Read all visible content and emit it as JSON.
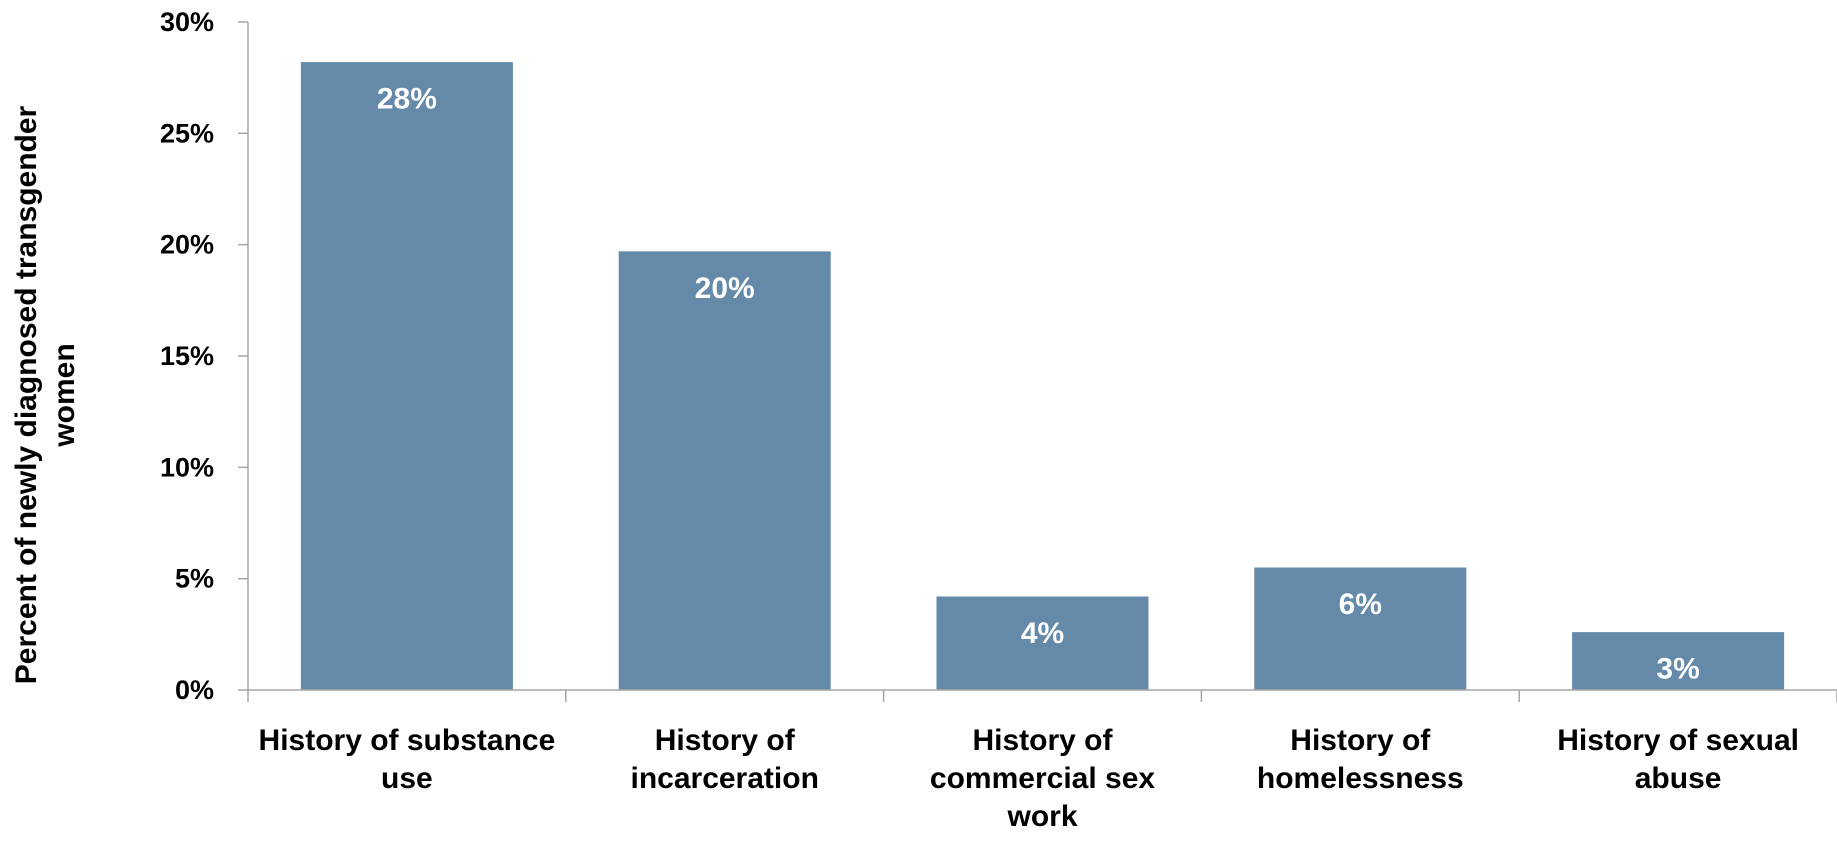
{
  "chart_data": {
    "type": "bar",
    "categories": [
      [
        "History of substance",
        "use"
      ],
      [
        "History of",
        "incarceration"
      ],
      [
        "History of",
        "commercial sex",
        "work"
      ],
      [
        "History of",
        "homelessness"
      ],
      [
        "History of sexual",
        "abuse"
      ]
    ],
    "values": [
      28.2,
      19.7,
      4.2,
      5.5,
      2.6
    ],
    "data_labels": [
      "28%",
      "20%",
      "4%",
      "6%",
      "3%"
    ],
    "title": "",
    "xlabel": "",
    "ylabel": [
      "Percent of newly diagnosed transgender",
      "women"
    ],
    "ylim": [
      0,
      30
    ],
    "yticks": [
      0,
      5,
      10,
      15,
      20,
      25,
      30
    ],
    "ytick_labels": [
      "0%",
      "5%",
      "10%",
      "15%",
      "20%",
      "25%",
      "30%"
    ],
    "grid": false,
    "legend": "none",
    "bar_color": "#6489A9",
    "axis_color": "#A6A6A6"
  }
}
